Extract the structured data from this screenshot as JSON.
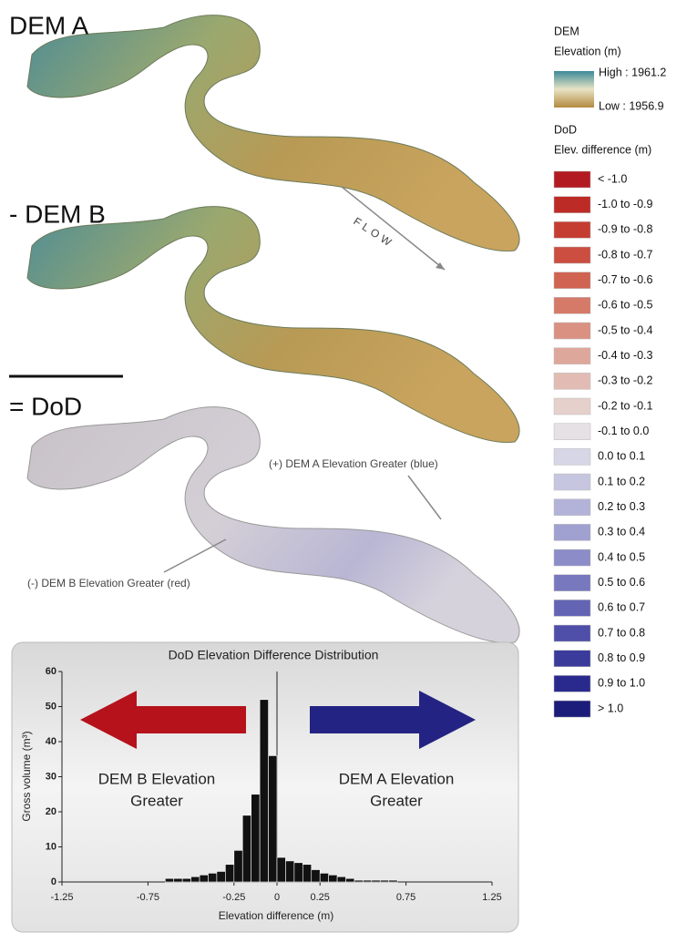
{
  "panels": {
    "dem_a": "DEM A",
    "dem_b": "- DEM B",
    "dod": "= DoD",
    "flow": "FLOW",
    "blue_note": "(+) DEM A Elevation Greater (blue)",
    "red_note": "(-) DEM B Elevation Greater (red)"
  },
  "legend": {
    "dem_title": "DEM",
    "dem_subtitle": "Elevation (m)",
    "high": "High : 1961.2",
    "low": "Low : 1956.9",
    "dod_title": "DoD",
    "dod_subtitle": "Elev. difference (m)",
    "items": [
      {
        "label": "< -1.0",
        "color": "#b31b22"
      },
      {
        "label": "-1.0 to -0.9",
        "color": "#bd2b27"
      },
      {
        "label": "-0.9 to -0.8",
        "color": "#c53d31"
      },
      {
        "label": "-0.8 to -0.7",
        "color": "#cb4e41"
      },
      {
        "label": "-0.7 to -0.6",
        "color": "#d06352"
      },
      {
        "label": "-0.6 to -0.5",
        "color": "#d57a68"
      },
      {
        "label": "-0.5 to -0.4",
        "color": "#da9181"
      },
      {
        "label": "-0.4 to -0.3",
        "color": "#dea79b"
      },
      {
        "label": "-0.3 to -0.2",
        "color": "#e2bcb4"
      },
      {
        "label": "-0.2 to -0.1",
        "color": "#e6d0cc"
      },
      {
        "label": "-0.1 to 0.0",
        "color": "#e6e1e4"
      },
      {
        "label": "0.0 to 0.1",
        "color": "#d6d6e6"
      },
      {
        "label": "0.1 to 0.2",
        "color": "#c6c6e0"
      },
      {
        "label": "0.2 to 0.3",
        "color": "#b3b3d9"
      },
      {
        "label": "0.3 to 0.4",
        "color": "#a0a0d1"
      },
      {
        "label": "0.4 to 0.5",
        "color": "#8c8cc8"
      },
      {
        "label": "0.5 to 0.6",
        "color": "#7878bf"
      },
      {
        "label": "0.6 to 0.7",
        "color": "#6464b5"
      },
      {
        "label": "0.7 to 0.8",
        "color": "#4f4fa9"
      },
      {
        "label": "0.8 to 0.9",
        "color": "#3b3b9c"
      },
      {
        "label": "0.9 to 1.0",
        "color": "#2a2a8e"
      },
      {
        "label": "> 1.0",
        "color": "#1c1c7a"
      }
    ]
  },
  "chart_data": {
    "type": "histogram",
    "title": "DoD Elevation Difference Distribution",
    "x_label": "Elevation difference (m)",
    "y_label": "Gross volume (m³)",
    "bins": [
      -0.65,
      -0.6,
      -0.55,
      -0.5,
      -0.45,
      -0.4,
      -0.35,
      -0.3,
      -0.25,
      -0.2,
      -0.15,
      -0.1,
      -0.05,
      0,
      0.05,
      0.1,
      0.15,
      0.2,
      0.25,
      0.3,
      0.35,
      0.4,
      0.45,
      0.5,
      0.55,
      0.6,
      0.65,
      0.7
    ],
    "values": [
      1,
      1,
      1,
      1.5,
      2,
      2.5,
      3,
      5,
      9,
      19,
      25,
      52,
      36,
      7,
      6,
      5.5,
      5,
      3.5,
      2.5,
      2,
      1.5,
      1,
      0.5,
      0.5,
      0.5,
      0.5,
      0.5
    ],
    "color": "#111111",
    "xlim": [
      -1.25,
      1.25
    ],
    "xticks": [
      -1.25,
      -0.75,
      -0.25,
      0,
      0.25,
      0.75,
      1.25
    ],
    "ylim": [
      0,
      60
    ],
    "yticks": [
      0,
      10,
      20,
      30,
      40,
      50,
      60
    ],
    "annotations": [
      {
        "lines": [
          "DEM B Elevation",
          "Greater"
        ]
      },
      {
        "lines": [
          "DEM A Elevation",
          "Greater"
        ]
      }
    ]
  }
}
